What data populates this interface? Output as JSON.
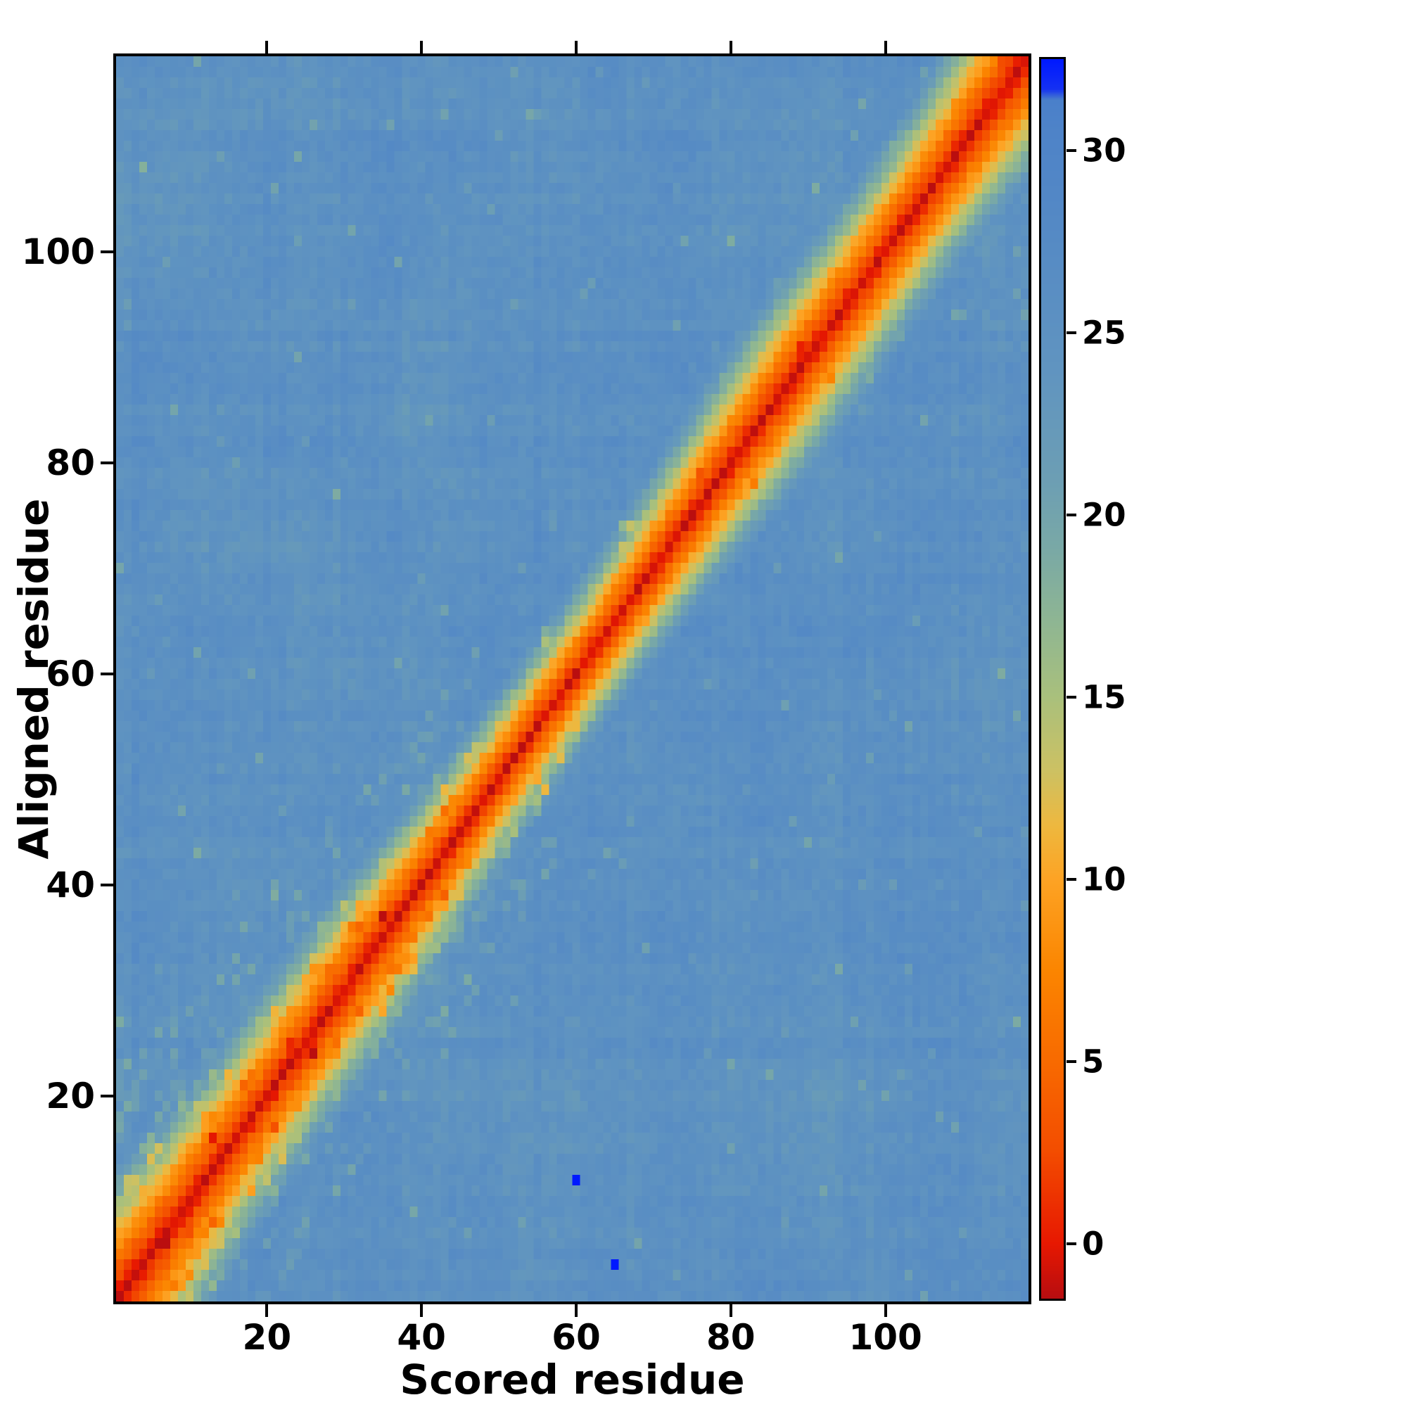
{
  "figure": {
    "background_color": "#ffffff",
    "kind": "residue-residue aligned-error heatmap"
  },
  "chart_data": {
    "type": "heatmap",
    "title": "",
    "xlabel": "Scored residue",
    "ylabel": "Aligned residue",
    "x_range": [
      1,
      118
    ],
    "y_range": [
      1,
      118
    ],
    "x_ticks": [
      20,
      40,
      60,
      80,
      100
    ],
    "y_ticks": [
      20,
      40,
      60,
      80,
      100
    ],
    "grid": false,
    "legend": "none",
    "colorbar": {
      "position": "right",
      "ticks": [
        0,
        5,
        10,
        15,
        20,
        25,
        30
      ],
      "vmin": -1.5,
      "vmax": 32.5,
      "overflow_color": "#0019ff"
    },
    "colormap_stops": [
      [
        -1.5,
        "#b70d10"
      ],
      [
        0,
        "#e71801"
      ],
      [
        2.5,
        "#f34c00"
      ],
      [
        5,
        "#f86a00"
      ],
      [
        7.5,
        "#fb8500"
      ],
      [
        10,
        "#fda324"
      ],
      [
        11.5,
        "#edb83f"
      ],
      [
        13,
        "#ccc163"
      ],
      [
        15,
        "#a9c07c"
      ],
      [
        17,
        "#8fb692"
      ],
      [
        19,
        "#7aa9a5"
      ],
      [
        21,
        "#6c9eb4"
      ],
      [
        24,
        "#6094c0"
      ],
      [
        28,
        "#5489c5"
      ],
      [
        30.5,
        "#4e83c8"
      ],
      [
        31.4,
        "#4a80ca"
      ],
      [
        31.7,
        "#1430f2"
      ],
      [
        32.5,
        "#0019ff"
      ]
    ],
    "pattern": {
      "description": "Low values (red, about 0) along the main diagonal forming a band that widens near both chain ends (residues <30 and >100) and slightly around residue 86; band flanked by orange (5-10) then yellow-green (12-17) fringes; uniform high-value background (about 25, steel blue) with mild speckle noise; two isolated maximum-value bright-blue cells below the diagonal.",
      "n_residues": 118,
      "diagonal_min_value": -1,
      "band_slope_per_cell": 3.1,
      "background_mean": 25,
      "background_noise": 2.4,
      "band_width_start_boost": 0.85,
      "band_width_end_boost": 0.7,
      "seed": 7
    },
    "outliers": [
      {
        "scored_residue": 60,
        "aligned_residue": 12,
        "value": 33
      },
      {
        "scored_residue": 65,
        "aligned_residue": 4,
        "value": 33
      }
    ]
  }
}
